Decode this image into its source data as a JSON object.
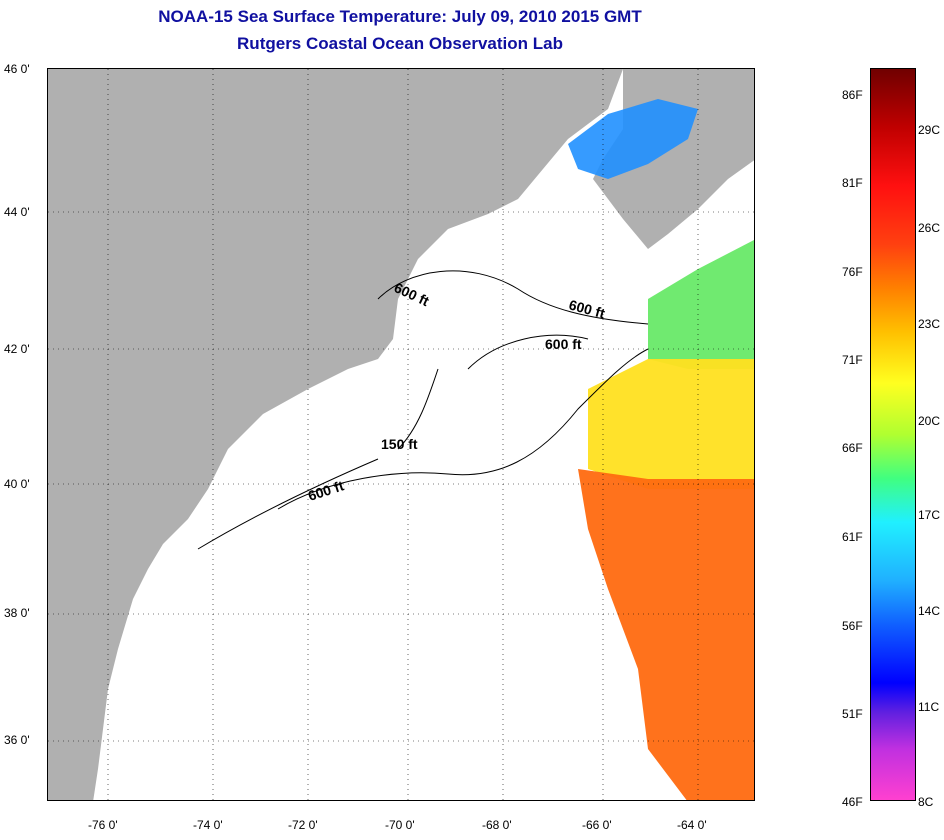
{
  "title_line1": "NOAA-15 Sea Surface Temperature:  July 09, 2010 2015 GMT",
  "title_line2": "Rutgers Coastal Ocean Observation Lab",
  "lat_labels": [
    "46 0'",
    "44 0'",
    "42 0'",
    "40 0'",
    "38 0'",
    "36 0'"
  ],
  "lon_labels": [
    "-76 0'",
    "-74 0'",
    "-72 0'",
    "-70 0'",
    "-68 0'",
    "-66 0'",
    "-64 0'"
  ],
  "contour_labels": [
    "600 ft",
    "600 ft",
    "600 ft",
    "150 ft",
    "600 ft"
  ],
  "colorbar_f": [
    "86F",
    "81F",
    "76F",
    "71F",
    "66F",
    "61F",
    "56F",
    "51F",
    "46F"
  ],
  "colorbar_c": [
    "29C",
    "26C",
    "23C",
    "20C",
    "17C",
    "14C",
    "11C",
    "8C"
  ],
  "colors": {
    "title": "#1010a0",
    "land": "#b0b0b0",
    "warm_water": "#ff6a10",
    "mild_water": "#ffe020",
    "cool_water": "#60e860",
    "cold_water": "#2090ff"
  }
}
